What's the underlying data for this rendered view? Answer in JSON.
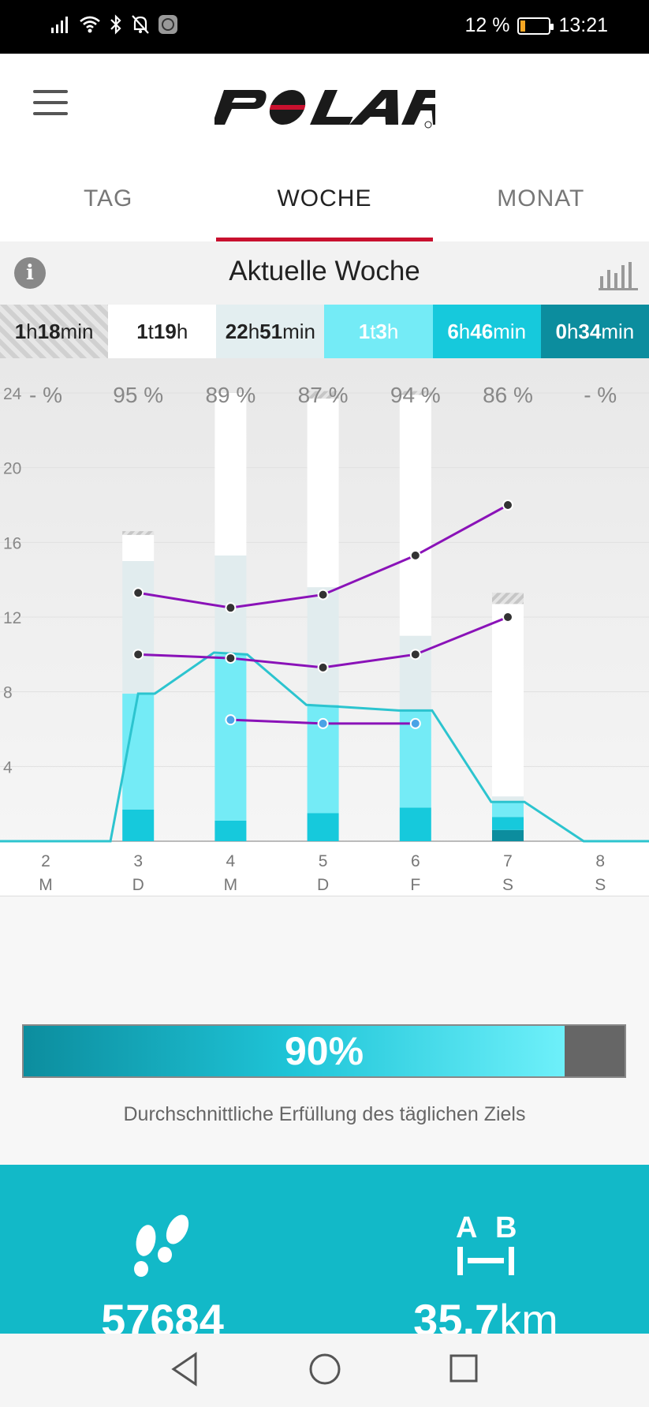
{
  "status_bar": {
    "battery": "12 %",
    "time": "13:21"
  },
  "header": {
    "logo_text": "POLAR"
  },
  "tabs": [
    {
      "label": "TAG"
    },
    {
      "label": "WOCHE",
      "active": true
    },
    {
      "label": "MONAT"
    }
  ],
  "week": {
    "title": "Aktuelle Woche"
  },
  "summary": [
    {
      "bold": "1",
      "mid": "h",
      "bold2": "18",
      "tail": "min",
      "style": "hatched"
    },
    {
      "bold": "1",
      "mid": "t",
      "bold2": "19",
      "tail": "h",
      "style": "white"
    },
    {
      "bold": "22",
      "mid": "h",
      "bold2": "51",
      "tail": "min",
      "style": "pale"
    },
    {
      "bold": "1",
      "mid": "t",
      "bold2": "3",
      "tail": "h",
      "style": "light"
    },
    {
      "bold": "6",
      "mid": "h",
      "bold2": "46",
      "tail": "min",
      "style": "mid"
    },
    {
      "bold": "0",
      "mid": "h",
      "bold2": "34",
      "tail": "min",
      "style": "dark"
    }
  ],
  "chart_data": {
    "type": "bar",
    "y_ticks": [
      "24",
      "20",
      "16",
      "12",
      "8",
      "4"
    ],
    "ylim": [
      0,
      24
    ],
    "days": [
      {
        "num": "2",
        "letter": "M",
        "pct": "- %",
        "goal_pct": 0
      },
      {
        "num": "3",
        "letter": "D",
        "pct": "95 %",
        "goal_pct": 95
      },
      {
        "num": "4",
        "letter": "M",
        "pct": "89 %",
        "goal_pct": 89
      },
      {
        "num": "5",
        "letter": "D",
        "pct": "87 %",
        "goal_pct": 87
      },
      {
        "num": "6",
        "letter": "F",
        "pct": "94 %",
        "goal_pct": 94
      },
      {
        "num": "7",
        "letter": "S",
        "pct": "86 %",
        "goal_pct": 86
      },
      {
        "num": "8",
        "letter": "S",
        "pct": "- %",
        "goal_pct": 0
      }
    ],
    "bars": [
      {
        "day": "3",
        "segments": [
          {
            "kind": "mid",
            "h": 1.7
          },
          {
            "kind": "light",
            "h": 6.2
          },
          {
            "kind": "pale",
            "h": 7.1
          },
          {
            "kind": "white",
            "h": 1.4
          },
          {
            "kind": "hatch",
            "h": 0.2
          }
        ]
      },
      {
        "day": "4",
        "segments": [
          {
            "kind": "mid",
            "h": 1.1
          },
          {
            "kind": "light",
            "h": 8.9
          },
          {
            "kind": "pale",
            "h": 5.3
          },
          {
            "kind": "white",
            "h": 8.7
          }
        ]
      },
      {
        "day": "5",
        "segments": [
          {
            "kind": "mid",
            "h": 1.5
          },
          {
            "kind": "light",
            "h": 5.8
          },
          {
            "kind": "pale",
            "h": 6.3
          },
          {
            "kind": "white",
            "h": 10.1
          },
          {
            "kind": "hatch",
            "h": 0.4
          }
        ]
      },
      {
        "day": "6",
        "segments": [
          {
            "kind": "mid",
            "h": 1.8
          },
          {
            "kind": "light",
            "h": 5.2
          },
          {
            "kind": "pale",
            "h": 4.0
          },
          {
            "kind": "white",
            "h": 12.9
          },
          {
            "kind": "hatch",
            "h": 0.2
          }
        ]
      },
      {
        "day": "7",
        "segments": [
          {
            "kind": "dark",
            "h": 0.6
          },
          {
            "kind": "mid",
            "h": 0.7
          },
          {
            "kind": "light",
            "h": 0.8
          },
          {
            "kind": "pale",
            "h": 0.3
          },
          {
            "kind": "white",
            "h": 10.3
          },
          {
            "kind": "hatch",
            "h": 0.6
          }
        ]
      }
    ],
    "activity_line": [
      {
        "x": 0,
        "y": 0
      },
      {
        "x": 0.7,
        "y": 0
      },
      {
        "x": 1,
        "y": 7.9
      },
      {
        "x": 1.18,
        "y": 7.9
      },
      {
        "x": 1.82,
        "y": 10.1
      },
      {
        "x": 2.18,
        "y": 10.0
      },
      {
        "x": 2.82,
        "y": 7.3
      },
      {
        "x": 3.18,
        "y": 7.2
      },
      {
        "x": 3.82,
        "y": 7.0
      },
      {
        "x": 4.18,
        "y": 7.0
      },
      {
        "x": 4.82,
        "y": 2.1
      },
      {
        "x": 5.18,
        "y": 2.1
      },
      {
        "x": 5.82,
        "y": 0
      },
      {
        "x": 6.5,
        "y": 0
      }
    ],
    "purple_lines": [
      [
        {
          "d": 1,
          "v": 13.3
        },
        {
          "d": 2,
          "v": 12.5
        },
        {
          "d": 3,
          "v": 13.2
        },
        {
          "d": 4,
          "v": 15.3
        },
        {
          "d": 5,
          "v": 18.0
        }
      ],
      [
        {
          "d": 1,
          "v": 10.0
        },
        {
          "d": 2,
          "v": 9.8
        },
        {
          "d": 3,
          "v": 9.3
        },
        {
          "d": 4,
          "v": 10.0
        },
        {
          "d": 5,
          "v": 12.0
        }
      ],
      [
        {
          "d": 2,
          "v": 6.5
        },
        {
          "d": 3,
          "v": 6.3
        },
        {
          "d": 4,
          "v": 6.3
        }
      ]
    ],
    "blue_points": [
      2,
      3,
      4
    ],
    "marker_day": "7"
  },
  "progress": {
    "value": "90%",
    "fraction": 0.9,
    "caption": "Durchschnittliche Erfüllung des täglichen Ziels"
  },
  "stats": {
    "steps": {
      "value": "57684",
      "icon": "footprints-icon"
    },
    "distance": {
      "value": "35,7",
      "unit": "km",
      "icon": "a-b-distance-icon",
      "label_a": "A",
      "label_b": "B"
    }
  },
  "colors": {
    "accent_red": "#c8102e",
    "teal": "#12b9c8",
    "purple": "#8a12b8",
    "light_cyan": "#74ebf6",
    "mid_cyan": "#16c9dc",
    "dark_teal": "#0c8d9e"
  }
}
